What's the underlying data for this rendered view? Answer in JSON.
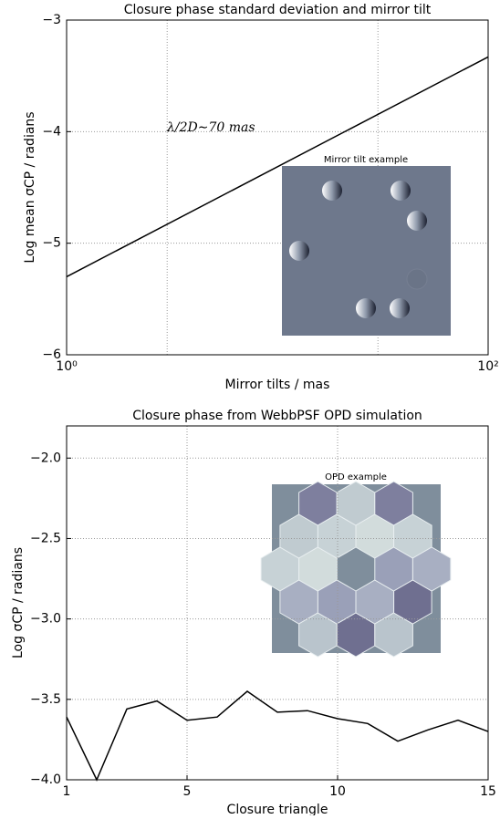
{
  "chart_data": [
    {
      "type": "line",
      "title": "Closure phase standard deviation and mirror tilt",
      "x_label": "Mirror tilts / mas",
      "y_label": "Log mean σCP / radians",
      "annotation": "λ/2D∼70 mas",
      "inset_title": "Mirror tilt example",
      "x": [
        1,
        100
      ],
      "values": [
        -5.3,
        -3.33
      ],
      "color": "#000000",
      "xlog": true,
      "xlim": [
        1,
        100
      ],
      "xticks": [
        {
          "value": 1,
          "label": "10⁰"
        },
        {
          "value": 100,
          "label": "10²"
        }
      ],
      "xgrid_lines": [
        3,
        30
      ],
      "ylim": [
        -6,
        -3
      ],
      "yticks": [
        {
          "value": -6,
          "label": "−6"
        },
        {
          "value": -5,
          "label": "−5"
        },
        {
          "value": -4,
          "label": "−4"
        },
        {
          "value": -3,
          "label": "−3"
        }
      ],
      "grid": true
    },
    {
      "type": "line",
      "title": "Closure phase from WebbPSF OPD simulation",
      "x_label": "Closure triangle",
      "y_label": "Log σCP / radians",
      "inset_title": "OPD example",
      "x": [
        1,
        2,
        3,
        4,
        5,
        6,
        7,
        8,
        9,
        10,
        11,
        12,
        13,
        14,
        15
      ],
      "values": [
        -3.61,
        -4.0,
        -3.56,
        -3.51,
        -3.63,
        -3.61,
        -3.45,
        -3.58,
        -3.57,
        -3.62,
        -3.65,
        -3.76,
        -3.69,
        -3.63,
        -3.7
      ],
      "color": "#000000",
      "xlog": false,
      "xlim": [
        1,
        15
      ],
      "xticks": [
        1,
        5,
        10,
        15
      ],
      "ylim": [
        -4,
        -1.8
      ],
      "yticks": [
        {
          "value": -4,
          "label": "−4.0"
        },
        {
          "value": -3.5,
          "label": "−3.5"
        },
        {
          "value": -3,
          "label": "−3.0"
        },
        {
          "value": -2.5,
          "label": "−2.5"
        },
        {
          "value": -2,
          "label": "−2.0"
        }
      ],
      "grid": true
    }
  ]
}
